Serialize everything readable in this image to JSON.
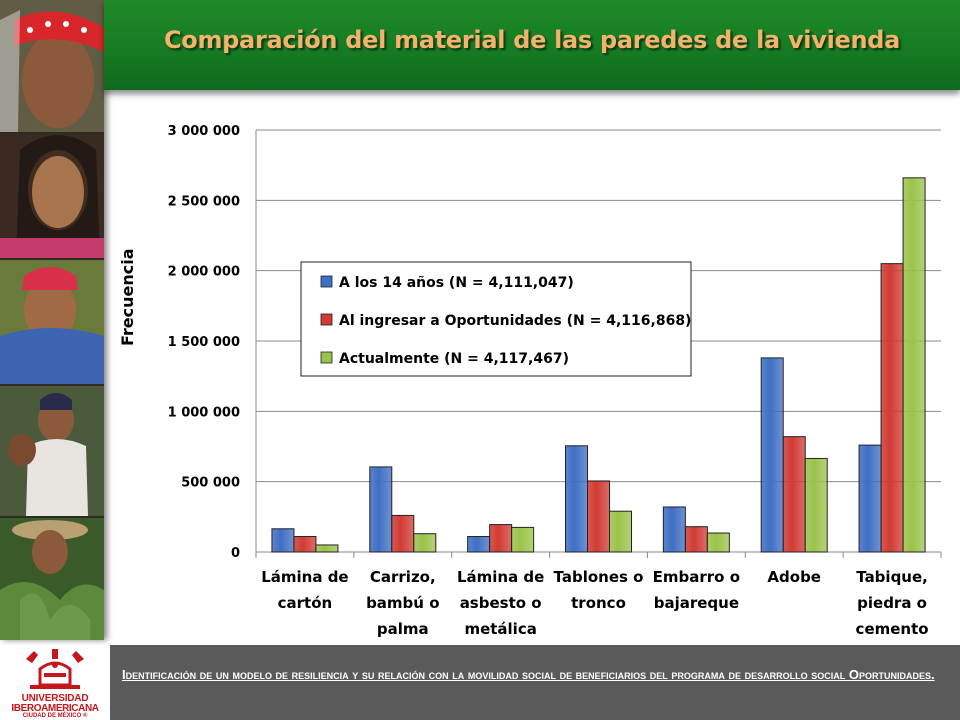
{
  "header": {
    "title": "Comparación del material de las paredes de la vivienda"
  },
  "footer": {
    "text": "Identificación de un modelo de resiliencia y su relación con la movilidad social de beneficiarios del programa de desarrollo social Oportunidades.",
    "logo": {
      "line1": "UNIVERSIDAD",
      "line2": "IBEROAMERICANA",
      "line3": "CIUDAD DE MÉXICO ®"
    }
  },
  "colors": {
    "series1": "#3f6fc4",
    "series2": "#d13b34",
    "series3": "#9bc34a",
    "header": "#1a7f25",
    "title": "#f3b36a",
    "footer": "#5a5a5a"
  },
  "chart_data": {
    "type": "bar",
    "ylabel": "Frecuencia",
    "xlabel": "",
    "ylim": [
      0,
      3000000
    ],
    "yticks": [
      "0",
      "500 000",
      "1 000 000",
      "1 500 000",
      "2 000 000",
      "2 500 000",
      "3 000 000"
    ],
    "ytick_values": [
      0,
      500000,
      1000000,
      1500000,
      2000000,
      2500000,
      3000000
    ],
    "grid": true,
    "legend_position": "inside-top-left",
    "categories": [
      [
        "Lámina de",
        "cartón"
      ],
      [
        "Carrizo,",
        "bambú o",
        "palma"
      ],
      [
        "Lámina de",
        "asbesto o",
        "metálica"
      ],
      [
        "Tablones o",
        "tronco"
      ],
      [
        "Embarro o",
        "bajareque"
      ],
      [
        "Adobe"
      ],
      [
        "Tabique,",
        "piedra o",
        "cemento"
      ]
    ],
    "series": [
      {
        "name": "A los 14 años (N = 4,111,047)",
        "values": [
          165000,
          605000,
          110000,
          755000,
          320000,
          1380000,
          760000
        ]
      },
      {
        "name": "Al ingresar a Oportunidades (N = 4,116,868)",
        "values": [
          110000,
          260000,
          195000,
          505000,
          180000,
          820000,
          2050000
        ]
      },
      {
        "name": "Actualmente (N = 4,117,467)",
        "values": [
          50000,
          130000,
          175000,
          290000,
          135000,
          665000,
          2660000
        ]
      }
    ]
  }
}
